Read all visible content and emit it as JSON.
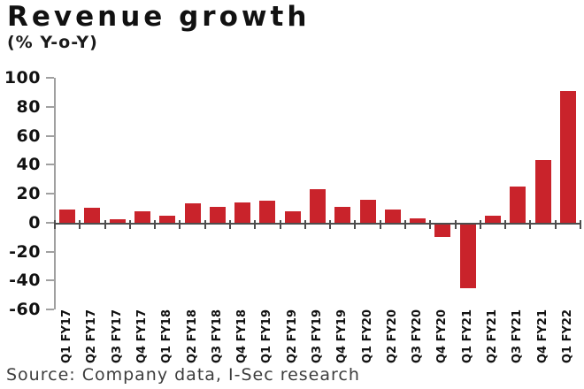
{
  "header": {
    "title": "Revenue growth",
    "subtitle": "(% Y-o-Y)"
  },
  "footer": {
    "source": "Source: Company data, I-Sec research"
  },
  "colors": {
    "bar": "#c9232b",
    "axis": "#a0a0a0",
    "zero_line": "#4d4d4d",
    "text": "#111111"
  },
  "chart_data": {
    "type": "bar",
    "title": "Revenue growth",
    "subtitle": "(% Y-o-Y)",
    "xlabel": "",
    "ylabel": "% Y-o-Y",
    "categories": [
      "Q1 FY17",
      "Q2 FY17",
      "Q3 FY17",
      "Q4 FY17",
      "Q1 FY18",
      "Q2 FY18",
      "Q3 FY18",
      "Q4 FY18",
      "Q1 FY19",
      "Q2 FY19",
      "Q3 FY19",
      "Q4 FY19",
      "Q1 FY20",
      "Q2 FY20",
      "Q3 FY20",
      "Q4 FY20",
      "Q1 FY21",
      "Q2 FY21",
      "Q3 FY21",
      "Q4 FY21",
      "Q1 FY22"
    ],
    "values": [
      9,
      10,
      2,
      8,
      5,
      13,
      11,
      14,
      15,
      8,
      23,
      11,
      16,
      9,
      3,
      -9,
      -44,
      5,
      25,
      43,
      91
    ],
    "ylim": [
      -60,
      100
    ],
    "yticks": [
      100,
      80,
      60,
      40,
      20,
      0,
      -20,
      -40,
      -60
    ],
    "grid": false,
    "legend": false,
    "bar_color": "#c9232b",
    "source": "Source: Company data, I-Sec research"
  }
}
